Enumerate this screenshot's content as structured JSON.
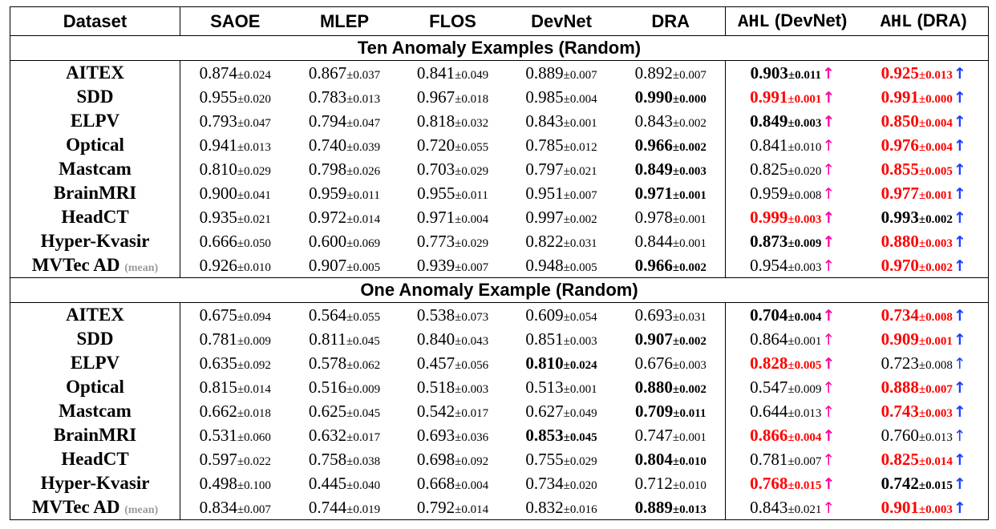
{
  "headers": {
    "dataset": "Dataset",
    "saoe": "SAOE",
    "mlep": "MLEP",
    "flos": "FLOS",
    "devnet": "DevNet",
    "dra": "DRA",
    "ahl_devnet_prefix": "AHL",
    "ahl_devnet_suffix": " (DevNet)",
    "ahl_dra_prefix": "AHL",
    "ahl_dra_suffix": " (DRA)"
  },
  "std_prefix": "±",
  "arrow_glyph": "↑",
  "colors": {
    "highlight": "#ff0000",
    "arrow_devnet": "#ff00a8",
    "arrow_dra": "#1a3cff",
    "mean_tag": "#9a9a9a"
  },
  "sections": [
    {
      "title": "Ten Anomaly Examples (Random)",
      "rows": [
        {
          "name": "AITEX",
          "tag": "",
          "cells": [
            {
              "v": "0.874",
              "s": "0.024",
              "b": false,
              "r": false
            },
            {
              "v": "0.867",
              "s": "0.037",
              "b": false,
              "r": false
            },
            {
              "v": "0.841",
              "s": "0.049",
              "b": false,
              "r": false
            },
            {
              "v": "0.889",
              "s": "0.007",
              "b": false,
              "r": false
            },
            {
              "v": "0.892",
              "s": "0.007",
              "b": false,
              "r": false
            },
            {
              "v": "0.903",
              "s": "0.011",
              "b": true,
              "r": false
            },
            {
              "v": "0.925",
              "s": "0.013",
              "b": true,
              "r": true
            }
          ]
        },
        {
          "name": "SDD",
          "tag": "",
          "cells": [
            {
              "v": "0.955",
              "s": "0.020",
              "b": false,
              "r": false
            },
            {
              "v": "0.783",
              "s": "0.013",
              "b": false,
              "r": false
            },
            {
              "v": "0.967",
              "s": "0.018",
              "b": false,
              "r": false
            },
            {
              "v": "0.985",
              "s": "0.004",
              "b": false,
              "r": false
            },
            {
              "v": "0.990",
              "s": "0.000",
              "b": true,
              "r": false
            },
            {
              "v": "0.991",
              "s": "0.001",
              "b": true,
              "r": true
            },
            {
              "v": "0.991",
              "s": "0.000",
              "b": true,
              "r": true
            }
          ]
        },
        {
          "name": "ELPV",
          "tag": "",
          "cells": [
            {
              "v": "0.793",
              "s": "0.047",
              "b": false,
              "r": false
            },
            {
              "v": "0.794",
              "s": "0.047",
              "b": false,
              "r": false
            },
            {
              "v": "0.818",
              "s": "0.032",
              "b": false,
              "r": false
            },
            {
              "v": "0.843",
              "s": "0.001",
              "b": false,
              "r": false
            },
            {
              "v": "0.843",
              "s": "0.002",
              "b": false,
              "r": false
            },
            {
              "v": "0.849",
              "s": "0.003",
              "b": true,
              "r": false
            },
            {
              "v": "0.850",
              "s": "0.004",
              "b": true,
              "r": true
            }
          ]
        },
        {
          "name": "Optical",
          "tag": "",
          "cells": [
            {
              "v": "0.941",
              "s": "0.013",
              "b": false,
              "r": false
            },
            {
              "v": "0.740",
              "s": "0.039",
              "b": false,
              "r": false
            },
            {
              "v": "0.720",
              "s": "0.055",
              "b": false,
              "r": false
            },
            {
              "v": "0.785",
              "s": "0.012",
              "b": false,
              "r": false
            },
            {
              "v": "0.966",
              "s": "0.002",
              "b": true,
              "r": false
            },
            {
              "v": "0.841",
              "s": "0.010",
              "b": false,
              "r": false
            },
            {
              "v": "0.976",
              "s": "0.004",
              "b": true,
              "r": true
            }
          ]
        },
        {
          "name": "Mastcam",
          "tag": "",
          "cells": [
            {
              "v": "0.810",
              "s": "0.029",
              "b": false,
              "r": false
            },
            {
              "v": "0.798",
              "s": "0.026",
              "b": false,
              "r": false
            },
            {
              "v": "0.703",
              "s": "0.029",
              "b": false,
              "r": false
            },
            {
              "v": "0.797",
              "s": "0.021",
              "b": false,
              "r": false
            },
            {
              "v": "0.849",
              "s": "0.003",
              "b": true,
              "r": false
            },
            {
              "v": "0.825",
              "s": "0.020",
              "b": false,
              "r": false
            },
            {
              "v": "0.855",
              "s": "0.005",
              "b": true,
              "r": true
            }
          ]
        },
        {
          "name": "BrainMRI",
          "tag": "",
          "cells": [
            {
              "v": "0.900",
              "s": "0.041",
              "b": false,
              "r": false
            },
            {
              "v": "0.959",
              "s": "0.011",
              "b": false,
              "r": false
            },
            {
              "v": "0.955",
              "s": "0.011",
              "b": false,
              "r": false
            },
            {
              "v": "0.951",
              "s": "0.007",
              "b": false,
              "r": false
            },
            {
              "v": "0.971",
              "s": "0.001",
              "b": true,
              "r": false
            },
            {
              "v": "0.959",
              "s": "0.008",
              "b": false,
              "r": false
            },
            {
              "v": "0.977",
              "s": "0.001",
              "b": true,
              "r": true
            }
          ]
        },
        {
          "name": "HeadCT",
          "tag": "",
          "cells": [
            {
              "v": "0.935",
              "s": "0.021",
              "b": false,
              "r": false
            },
            {
              "v": "0.972",
              "s": "0.014",
              "b": false,
              "r": false
            },
            {
              "v": "0.971",
              "s": "0.004",
              "b": false,
              "r": false
            },
            {
              "v": "0.997",
              "s": "0.002",
              "b": false,
              "r": false
            },
            {
              "v": "0.978",
              "s": "0.001",
              "b": false,
              "r": false
            },
            {
              "v": "0.999",
              "s": "0.003",
              "b": true,
              "r": true
            },
            {
              "v": "0.993",
              "s": "0.002",
              "b": true,
              "r": false
            }
          ]
        },
        {
          "name": "Hyper-Kvasir",
          "tag": "",
          "cells": [
            {
              "v": "0.666",
              "s": "0.050",
              "b": false,
              "r": false
            },
            {
              "v": "0.600",
              "s": "0.069",
              "b": false,
              "r": false
            },
            {
              "v": "0.773",
              "s": "0.029",
              "b": false,
              "r": false
            },
            {
              "v": "0.822",
              "s": "0.031",
              "b": false,
              "r": false
            },
            {
              "v": "0.844",
              "s": "0.001",
              "b": false,
              "r": false
            },
            {
              "v": "0.873",
              "s": "0.009",
              "b": true,
              "r": false
            },
            {
              "v": "0.880",
              "s": "0.003",
              "b": true,
              "r": true
            }
          ]
        },
        {
          "name": "MVTec AD",
          "tag": "(mean)",
          "cells": [
            {
              "v": "0.926",
              "s": "0.010",
              "b": false,
              "r": false
            },
            {
              "v": "0.907",
              "s": "0.005",
              "b": false,
              "r": false
            },
            {
              "v": "0.939",
              "s": "0.007",
              "b": false,
              "r": false
            },
            {
              "v": "0.948",
              "s": "0.005",
              "b": false,
              "r": false
            },
            {
              "v": "0.966",
              "s": "0.002",
              "b": true,
              "r": false
            },
            {
              "v": "0.954",
              "s": "0.003",
              "b": false,
              "r": false
            },
            {
              "v": "0.970",
              "s": "0.002",
              "b": true,
              "r": true
            }
          ]
        }
      ]
    },
    {
      "title": "One Anomaly Example (Random)",
      "rows": [
        {
          "name": "AITEX",
          "tag": "",
          "cells": [
            {
              "v": "0.675",
              "s": "0.094",
              "b": false,
              "r": false
            },
            {
              "v": "0.564",
              "s": "0.055",
              "b": false,
              "r": false
            },
            {
              "v": "0.538",
              "s": "0.073",
              "b": false,
              "r": false
            },
            {
              "v": "0.609",
              "s": "0.054",
              "b": false,
              "r": false
            },
            {
              "v": "0.693",
              "s": "0.031",
              "b": false,
              "r": false
            },
            {
              "v": "0.704",
              "s": "0.004",
              "b": true,
              "r": false
            },
            {
              "v": "0.734",
              "s": "0.008",
              "b": true,
              "r": true
            }
          ]
        },
        {
          "name": "SDD",
          "tag": "",
          "cells": [
            {
              "v": "0.781",
              "s": "0.009",
              "b": false,
              "r": false
            },
            {
              "v": "0.811",
              "s": "0.045",
              "b": false,
              "r": false
            },
            {
              "v": "0.840",
              "s": "0.043",
              "b": false,
              "r": false
            },
            {
              "v": "0.851",
              "s": "0.003",
              "b": false,
              "r": false
            },
            {
              "v": "0.907",
              "s": "0.002",
              "b": true,
              "r": false
            },
            {
              "v": "0.864",
              "s": "0.001",
              "b": false,
              "r": false
            },
            {
              "v": "0.909",
              "s": "0.001",
              "b": true,
              "r": true
            }
          ]
        },
        {
          "name": "ELPV",
          "tag": "",
          "cells": [
            {
              "v": "0.635",
              "s": "0.092",
              "b": false,
              "r": false
            },
            {
              "v": "0.578",
              "s": "0.062",
              "b": false,
              "r": false
            },
            {
              "v": "0.457",
              "s": "0.056",
              "b": false,
              "r": false
            },
            {
              "v": "0.810",
              "s": "0.024",
              "b": true,
              "r": false
            },
            {
              "v": "0.676",
              "s": "0.003",
              "b": false,
              "r": false
            },
            {
              "v": "0.828",
              "s": "0.005",
              "b": true,
              "r": true
            },
            {
              "v": "0.723",
              "s": "0.008",
              "b": false,
              "r": false
            }
          ]
        },
        {
          "name": "Optical",
          "tag": "",
          "cells": [
            {
              "v": "0.815",
              "s": "0.014",
              "b": false,
              "r": false
            },
            {
              "v": "0.516",
              "s": "0.009",
              "b": false,
              "r": false
            },
            {
              "v": "0.518",
              "s": "0.003",
              "b": false,
              "r": false
            },
            {
              "v": "0.513",
              "s": "0.001",
              "b": false,
              "r": false
            },
            {
              "v": "0.880",
              "s": "0.002",
              "b": true,
              "r": false
            },
            {
              "v": "0.547",
              "s": "0.009",
              "b": false,
              "r": false
            },
            {
              "v": "0.888",
              "s": "0.007",
              "b": true,
              "r": true
            }
          ]
        },
        {
          "name": "Mastcam",
          "tag": "",
          "cells": [
            {
              "v": "0.662",
              "s": "0.018",
              "b": false,
              "r": false
            },
            {
              "v": "0.625",
              "s": "0.045",
              "b": false,
              "r": false
            },
            {
              "v": "0.542",
              "s": "0.017",
              "b": false,
              "r": false
            },
            {
              "v": "0.627",
              "s": "0.049",
              "b": false,
              "r": false
            },
            {
              "v": "0.709",
              "s": "0.011",
              "b": true,
              "r": false
            },
            {
              "v": "0.644",
              "s": "0.013",
              "b": false,
              "r": false
            },
            {
              "v": "0.743",
              "s": "0.003",
              "b": true,
              "r": true
            }
          ]
        },
        {
          "name": "BrainMRI",
          "tag": "",
          "cells": [
            {
              "v": "0.531",
              "s": "0.060",
              "b": false,
              "r": false
            },
            {
              "v": "0.632",
              "s": "0.017",
              "b": false,
              "r": false
            },
            {
              "v": "0.693",
              "s": "0.036",
              "b": false,
              "r": false
            },
            {
              "v": "0.853",
              "s": "0.045",
              "b": true,
              "r": false
            },
            {
              "v": "0.747",
              "s": "0.001",
              "b": false,
              "r": false
            },
            {
              "v": "0.866",
              "s": "0.004",
              "b": true,
              "r": true
            },
            {
              "v": "0.760",
              "s": "0.013",
              "b": false,
              "r": false
            }
          ]
        },
        {
          "name": "HeadCT",
          "tag": "",
          "cells": [
            {
              "v": "0.597",
              "s": "0.022",
              "b": false,
              "r": false
            },
            {
              "v": "0.758",
              "s": "0.038",
              "b": false,
              "r": false
            },
            {
              "v": "0.698",
              "s": "0.092",
              "b": false,
              "r": false
            },
            {
              "v": "0.755",
              "s": "0.029",
              "b": false,
              "r": false
            },
            {
              "v": "0.804",
              "s": "0.010",
              "b": true,
              "r": false
            },
            {
              "v": "0.781",
              "s": "0.007",
              "b": false,
              "r": false
            },
            {
              "v": "0.825",
              "s": "0.014",
              "b": true,
              "r": true
            }
          ]
        },
        {
          "name": "Hyper-Kvasir",
          "tag": "",
          "cells": [
            {
              "v": "0.498",
              "s": "0.100",
              "b": false,
              "r": false
            },
            {
              "v": "0.445",
              "s": "0.040",
              "b": false,
              "r": false
            },
            {
              "v": "0.668",
              "s": "0.004",
              "b": false,
              "r": false
            },
            {
              "v": "0.734",
              "s": "0.020",
              "b": false,
              "r": false
            },
            {
              "v": "0.712",
              "s": "0.010",
              "b": false,
              "r": false
            },
            {
              "v": "0.768",
              "s": "0.015",
              "b": true,
              "r": true
            },
            {
              "v": "0.742",
              "s": "0.015",
              "b": true,
              "r": false
            }
          ]
        },
        {
          "name": "MVTec AD",
          "tag": "(mean)",
          "cells": [
            {
              "v": "0.834",
              "s": "0.007",
              "b": false,
              "r": false
            },
            {
              "v": "0.744",
              "s": "0.019",
              "b": false,
              "r": false
            },
            {
              "v": "0.792",
              "s": "0.014",
              "b": false,
              "r": false
            },
            {
              "v": "0.832",
              "s": "0.016",
              "b": false,
              "r": false
            },
            {
              "v": "0.889",
              "s": "0.013",
              "b": true,
              "r": false
            },
            {
              "v": "0.843",
              "s": "0.021",
              "b": false,
              "r": false
            },
            {
              "v": "0.901",
              "s": "0.003",
              "b": true,
              "r": true
            }
          ]
        }
      ]
    }
  ]
}
